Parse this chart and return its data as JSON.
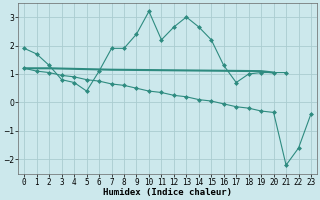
{
  "line1_x": [
    0,
    1,
    2,
    3,
    4,
    5,
    6,
    7,
    8,
    9,
    10,
    11,
    12,
    13,
    14,
    15,
    16,
    17,
    18,
    19,
    20,
    21
  ],
  "line1_y": [
    1.9,
    1.7,
    1.3,
    0.8,
    0.7,
    0.4,
    1.1,
    1.9,
    1.9,
    2.4,
    3.2,
    2.2,
    2.65,
    3.0,
    2.65,
    2.2,
    1.3,
    0.7,
    1.0,
    1.05,
    1.05,
    1.05
  ],
  "line2_x": [
    0,
    2,
    7,
    19,
    20
  ],
  "line2_y": [
    1.2,
    1.2,
    1.15,
    1.1,
    1.05
  ],
  "line3_x": [
    0,
    1,
    2,
    3,
    4,
    5,
    6,
    7,
    8,
    9,
    10,
    11,
    12,
    13,
    14,
    15,
    16,
    17,
    18,
    19,
    20,
    21,
    22,
    23
  ],
  "line3_y": [
    1.2,
    1.1,
    1.05,
    0.95,
    0.9,
    0.8,
    0.75,
    0.65,
    0.6,
    0.5,
    0.4,
    0.35,
    0.25,
    0.2,
    0.1,
    0.05,
    -0.05,
    -0.15,
    -0.2,
    -0.3,
    -0.35,
    -2.2,
    -1.6,
    -0.4
  ],
  "line_color": "#2e8b80",
  "bg_color": "#cce8ec",
  "grid_color": "#aaccd0",
  "xlabel": "Humidex (Indice chaleur)",
  "ylim": [
    -2.5,
    3.5
  ],
  "xlim": [
    -0.5,
    23.5
  ],
  "yticks": [
    -2,
    -1,
    0,
    1,
    2,
    3
  ],
  "xticks": [
    0,
    1,
    2,
    3,
    4,
    5,
    6,
    7,
    8,
    9,
    10,
    11,
    12,
    13,
    14,
    15,
    16,
    17,
    18,
    19,
    20,
    21,
    22,
    23
  ]
}
